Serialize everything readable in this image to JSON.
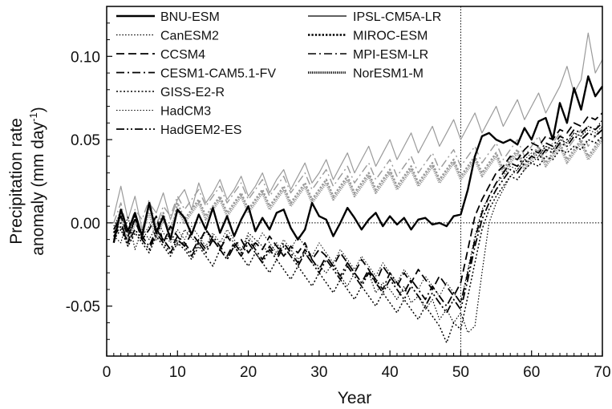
{
  "chart_data": {
    "type": "line",
    "xlabel": "Year",
    "ylabel_line1": "Precipitation rate",
    "ylabel_line2_prefix": "anomaly (mm day",
    "ylabel_line2_sup": "-1",
    "ylabel_line2_suffix": ")",
    "xlim": [
      0,
      70
    ],
    "ylim": [
      -0.08,
      0.13
    ],
    "x_ticks": [
      0,
      10,
      20,
      30,
      40,
      50,
      60,
      70
    ],
    "x_tick_labels": [
      "0",
      "10",
      "20",
      "30",
      "40",
      "50",
      "60",
      "70"
    ],
    "y_ticks": [
      -0.05,
      0.0,
      0.05,
      0.1
    ],
    "y_tick_labels": [
      "-0.05",
      "0.00",
      "0.05",
      "0.10"
    ],
    "grid": false,
    "reference_lines": {
      "y": 0.0,
      "x": 50
    },
    "legend_placement": "top-left",
    "x": [
      1,
      2,
      3,
      4,
      5,
      6,
      7,
      8,
      9,
      10,
      11,
      12,
      13,
      14,
      15,
      16,
      17,
      18,
      19,
      20,
      21,
      22,
      23,
      24,
      25,
      26,
      27,
      28,
      29,
      30,
      31,
      32,
      33,
      34,
      35,
      36,
      37,
      38,
      39,
      40,
      41,
      42,
      43,
      44,
      45,
      46,
      47,
      48,
      49,
      50,
      51,
      52,
      53,
      54,
      55,
      56,
      57,
      58,
      59,
      60,
      61,
      62,
      63,
      64,
      65,
      66,
      67,
      68,
      69,
      70
    ],
    "series_groups": [
      {
        "color": "#000000",
        "series": [
          {
            "name": "BNU-ESM",
            "style": "solid",
            "width": 2.4,
            "values": [
              -0.012,
              0.008,
              -0.005,
              0.006,
              -0.008,
              0.012,
              -0.006,
              0.004,
              -0.01,
              0.008,
              0.003,
              -0.007,
              0.005,
              -0.004,
              0.009,
              -0.006,
              0.004,
              -0.008,
              0.002,
              0.01,
              -0.005,
              0.003,
              -0.004,
              0.006,
              0.008,
              -0.003,
              -0.01,
              -0.004,
              0.012,
              0.004,
              0.002,
              -0.008,
              0.0,
              0.009,
              0.003,
              -0.004,
              0.002,
              0.006,
              -0.002,
              0.004,
              -0.001,
              0.003,
              -0.004,
              0.002,
              0.003,
              -0.001,
              0.0,
              -0.002,
              0.004,
              0.005,
              0.02,
              0.04,
              0.052,
              0.054,
              0.05,
              0.048,
              0.05,
              0.047,
              0.057,
              0.05,
              0.061,
              0.063,
              0.05,
              0.072,
              0.06,
              0.081,
              0.068,
              0.088,
              0.076,
              0.082
            ]
          },
          {
            "name": "CanESM2",
            "style": "dotted-fine",
            "width": 1.2,
            "values": [
              -0.008,
              -0.012,
              0.004,
              -0.016,
              -0.004,
              -0.01,
              -0.002,
              -0.012,
              -0.006,
              -0.014,
              -0.004,
              -0.009,
              -0.013,
              -0.005,
              -0.011,
              -0.015,
              -0.007,
              -0.012,
              -0.017,
              -0.006,
              -0.01,
              -0.014,
              -0.018,
              -0.012,
              -0.02,
              -0.016,
              -0.022,
              -0.018,
              -0.024,
              -0.026,
              -0.03,
              -0.024,
              -0.032,
              -0.038,
              -0.03,
              -0.036,
              -0.03,
              -0.042,
              -0.036,
              -0.04,
              -0.046,
              -0.038,
              -0.048,
              -0.044,
              -0.052,
              -0.046,
              -0.058,
              -0.052,
              -0.06,
              -0.054,
              -0.066,
              -0.062,
              -0.03,
              0.0,
              0.012,
              0.02,
              0.028,
              0.032,
              0.038,
              0.036,
              0.04,
              0.046,
              0.044,
              0.05,
              0.048,
              0.054,
              0.052,
              0.058,
              0.056,
              0.062
            ]
          },
          {
            "name": "CCSM4",
            "style": "dashed",
            "width": 1.8,
            "values": [
              -0.004,
              0.004,
              -0.008,
              0.002,
              -0.01,
              -0.004,
              0.004,
              -0.012,
              -0.002,
              -0.008,
              -0.014,
              -0.006,
              -0.012,
              -0.004,
              -0.01,
              -0.016,
              -0.008,
              -0.014,
              -0.01,
              -0.018,
              -0.012,
              -0.016,
              -0.008,
              -0.014,
              -0.02,
              -0.014,
              -0.018,
              -0.012,
              -0.022,
              -0.016,
              -0.02,
              -0.026,
              -0.018,
              -0.024,
              -0.03,
              -0.022,
              -0.028,
              -0.036,
              -0.026,
              -0.032,
              -0.038,
              -0.03,
              -0.036,
              -0.028,
              -0.034,
              -0.04,
              -0.032,
              -0.038,
              -0.044,
              -0.036,
              -0.016,
              0.004,
              0.014,
              0.022,
              0.03,
              0.034,
              0.04,
              0.038,
              0.044,
              0.048,
              0.046,
              0.052,
              0.05,
              0.056,
              0.054,
              0.06,
              0.058,
              0.064,
              0.062,
              0.066
            ]
          },
          {
            "name": "CESM1-CAM5.1-FV",
            "style": "dash-dot",
            "width": 1.8,
            "values": [
              -0.006,
              0.0,
              -0.012,
              0.004,
              -0.008,
              -0.014,
              -0.004,
              -0.01,
              -0.016,
              -0.008,
              -0.012,
              -0.018,
              -0.01,
              -0.016,
              -0.008,
              -0.014,
              -0.02,
              -0.012,
              -0.018,
              -0.01,
              -0.016,
              -0.022,
              -0.014,
              -0.02,
              -0.012,
              -0.018,
              -0.024,
              -0.016,
              -0.022,
              -0.028,
              -0.02,
              -0.026,
              -0.032,
              -0.024,
              -0.03,
              -0.036,
              -0.028,
              -0.034,
              -0.04,
              -0.03,
              -0.036,
              -0.042,
              -0.034,
              -0.04,
              -0.046,
              -0.038,
              -0.044,
              -0.05,
              -0.042,
              -0.048,
              -0.03,
              -0.01,
              0.006,
              0.016,
              0.024,
              0.03,
              0.036,
              0.034,
              0.04,
              0.044,
              0.042,
              0.048,
              0.046,
              0.052,
              0.05,
              0.056,
              0.054,
              0.058,
              0.056,
              0.06
            ]
          },
          {
            "name": "GISS-E2-R",
            "style": "dotted",
            "width": 1.5,
            "values": [
              -0.01,
              -0.004,
              -0.014,
              -0.006,
              -0.012,
              -0.018,
              -0.008,
              -0.014,
              -0.02,
              -0.012,
              -0.016,
              -0.022,
              -0.014,
              -0.02,
              -0.026,
              -0.016,
              -0.022,
              -0.014,
              -0.02,
              -0.026,
              -0.018,
              -0.024,
              -0.03,
              -0.022,
              -0.028,
              -0.034,
              -0.026,
              -0.032,
              -0.038,
              -0.03,
              -0.036,
              -0.042,
              -0.034,
              -0.04,
              -0.046,
              -0.038,
              -0.044,
              -0.05,
              -0.042,
              -0.048,
              -0.054,
              -0.046,
              -0.052,
              -0.058,
              -0.05,
              -0.056,
              -0.062,
              -0.072,
              -0.06,
              -0.064,
              -0.044,
              -0.024,
              -0.004,
              0.008,
              0.016,
              0.022,
              0.028,
              0.026,
              0.032,
              0.036,
              0.034,
              0.04,
              0.038,
              0.044,
              0.042,
              0.046,
              0.044,
              0.05,
              0.048,
              0.052
            ]
          },
          {
            "name": "HadCM3",
            "style": "dotted-fine",
            "width": 1.0,
            "values": [
              -0.002,
              0.006,
              -0.006,
              0.002,
              -0.008,
              -0.002,
              0.004,
              -0.006,
              -0.012,
              -0.004,
              -0.01,
              -0.002,
              -0.008,
              -0.014,
              -0.006,
              -0.012,
              -0.004,
              -0.01,
              -0.016,
              -0.008,
              -0.014,
              -0.006,
              -0.012,
              -0.018,
              -0.01,
              -0.016,
              -0.008,
              -0.014,
              -0.02,
              -0.012,
              -0.018,
              -0.024,
              -0.016,
              -0.022,
              -0.028,
              -0.02,
              -0.026,
              -0.032,
              -0.024,
              -0.03,
              -0.036,
              -0.028,
              -0.034,
              -0.04,
              -0.032,
              -0.038,
              -0.044,
              -0.036,
              -0.042,
              -0.048,
              -0.028,
              -0.008,
              0.008,
              0.016,
              0.024,
              0.028,
              0.034,
              0.032,
              0.038,
              0.042,
              0.04,
              0.046,
              0.044,
              0.05,
              0.048,
              0.054,
              0.052,
              0.056,
              0.054,
              0.058
            ]
          },
          {
            "name": "HadGEM2-ES",
            "style": "dash-dot-dot",
            "width": 1.8,
            "values": [
              -0.008,
              -0.002,
              -0.012,
              -0.004,
              -0.01,
              -0.016,
              -0.006,
              -0.012,
              -0.018,
              -0.01,
              -0.014,
              -0.02,
              -0.012,
              -0.018,
              -0.01,
              -0.016,
              -0.022,
              -0.014,
              -0.02,
              -0.012,
              -0.018,
              -0.024,
              -0.016,
              -0.022,
              -0.014,
              -0.02,
              -0.026,
              -0.018,
              -0.024,
              -0.03,
              -0.022,
              -0.028,
              -0.034,
              -0.026,
              -0.032,
              -0.038,
              -0.03,
              -0.036,
              -0.042,
              -0.034,
              -0.04,
              -0.046,
              -0.038,
              -0.044,
              -0.05,
              -0.042,
              -0.048,
              -0.054,
              -0.046,
              -0.052,
              -0.034,
              -0.014,
              0.002,
              0.012,
              0.02,
              0.026,
              0.032,
              0.03,
              0.036,
              0.04,
              0.038,
              0.044,
              0.042,
              0.048,
              0.046,
              0.052,
              0.05,
              0.054,
              0.052,
              0.056
            ]
          }
        ]
      },
      {
        "color": "#9a9a9a",
        "series": [
          {
            "name": "IPSL-CM5A-LR",
            "style": "solid",
            "width": 1.2,
            "values": [
              0.004,
              0.022,
              0.002,
              0.016,
              -0.004,
              0.012,
              0.006,
              0.018,
              0.002,
              0.014,
              0.02,
              0.008,
              0.024,
              0.012,
              0.018,
              0.026,
              0.014,
              0.02,
              0.028,
              0.016,
              0.022,
              0.03,
              0.018,
              0.026,
              0.032,
              0.02,
              0.028,
              0.036,
              0.024,
              0.03,
              0.038,
              0.026,
              0.034,
              0.042,
              0.03,
              0.038,
              0.046,
              0.034,
              0.042,
              0.05,
              0.038,
              0.046,
              0.054,
              0.042,
              0.05,
              0.058,
              0.046,
              0.054,
              0.062,
              0.05,
              0.058,
              0.066,
              0.054,
              0.062,
              0.07,
              0.058,
              0.066,
              0.074,
              0.062,
              0.07,
              0.078,
              0.066,
              0.074,
              0.082,
              0.094,
              0.078,
              0.086,
              0.114,
              0.09,
              0.098
            ]
          },
          {
            "name": "MIROC-ESM",
            "style": "dotted-bold",
            "width": 2.4,
            "values": [
              -0.006,
              0.008,
              -0.012,
              0.004,
              -0.008,
              0.01,
              -0.004,
              0.006,
              -0.01,
              0.012,
              0.002,
              0.008,
              0.014,
              0.004,
              0.01,
              0.016,
              0.006,
              0.012,
              0.018,
              0.008,
              0.014,
              0.02,
              0.01,
              0.016,
              0.022,
              0.012,
              0.018,
              0.024,
              0.014,
              0.02,
              0.026,
              0.016,
              0.022,
              0.028,
              0.018,
              0.024,
              0.03,
              0.02,
              0.026,
              0.032,
              0.022,
              0.028,
              0.034,
              0.024,
              0.03,
              0.036,
              0.026,
              0.032,
              0.038,
              0.028,
              0.034,
              0.04,
              0.03,
              0.036,
              0.042,
              0.032,
              0.038,
              0.044,
              0.034,
              0.04,
              0.046,
              0.036,
              0.042,
              0.048,
              0.038,
              0.044,
              0.05,
              0.04,
              0.046,
              0.052
            ]
          },
          {
            "name": "MPI-ESM-LR",
            "style": "dash-dot",
            "width": 1.4,
            "values": [
              0.0,
              0.012,
              -0.006,
              0.008,
              0.002,
              0.014,
              -0.002,
              0.01,
              0.004,
              0.016,
              0.008,
              0.014,
              0.02,
              0.01,
              0.016,
              0.022,
              0.012,
              0.018,
              0.024,
              0.014,
              0.02,
              0.026,
              0.016,
              0.022,
              0.028,
              0.018,
              0.024,
              0.03,
              0.02,
              0.026,
              0.032,
              0.022,
              0.028,
              0.034,
              0.024,
              0.03,
              0.036,
              0.026,
              0.032,
              0.038,
              0.028,
              0.034,
              0.04,
              0.03,
              0.036,
              0.042,
              0.032,
              0.038,
              0.044,
              0.034,
              0.04,
              0.046,
              0.036,
              0.042,
              0.048,
              0.038,
              0.044,
              0.05,
              0.04,
              0.046,
              0.052,
              0.042,
              0.048,
              0.054,
              0.044,
              0.05,
              0.056,
              0.046,
              0.052,
              0.058
            ]
          },
          {
            "name": "NorESM1-M",
            "style": "dotted-dense",
            "width": 2.8,
            "values": [
              -0.01,
              0.004,
              -0.014,
              0.0,
              -0.006,
              0.006,
              -0.01,
              0.002,
              -0.004,
              0.008,
              0.0,
              0.006,
              0.012,
              0.002,
              0.008,
              0.014,
              0.004,
              0.01,
              0.016,
              0.006,
              0.012,
              0.018,
              0.008,
              0.014,
              0.02,
              0.01,
              0.016,
              0.022,
              0.012,
              0.018,
              0.024,
              0.014,
              0.02,
              0.026,
              0.016,
              0.022,
              0.028,
              0.018,
              0.024,
              0.03,
              0.02,
              0.026,
              0.032,
              0.022,
              0.028,
              0.034,
              0.024,
              0.03,
              0.036,
              0.026,
              0.032,
              0.038,
              0.028,
              0.034,
              0.04,
              0.03,
              0.036,
              0.042,
              0.032,
              0.038,
              0.044,
              0.034,
              0.04,
              0.046,
              0.036,
              0.042,
              0.048,
              0.038,
              0.044,
              0.05
            ]
          }
        ]
      }
    ]
  }
}
